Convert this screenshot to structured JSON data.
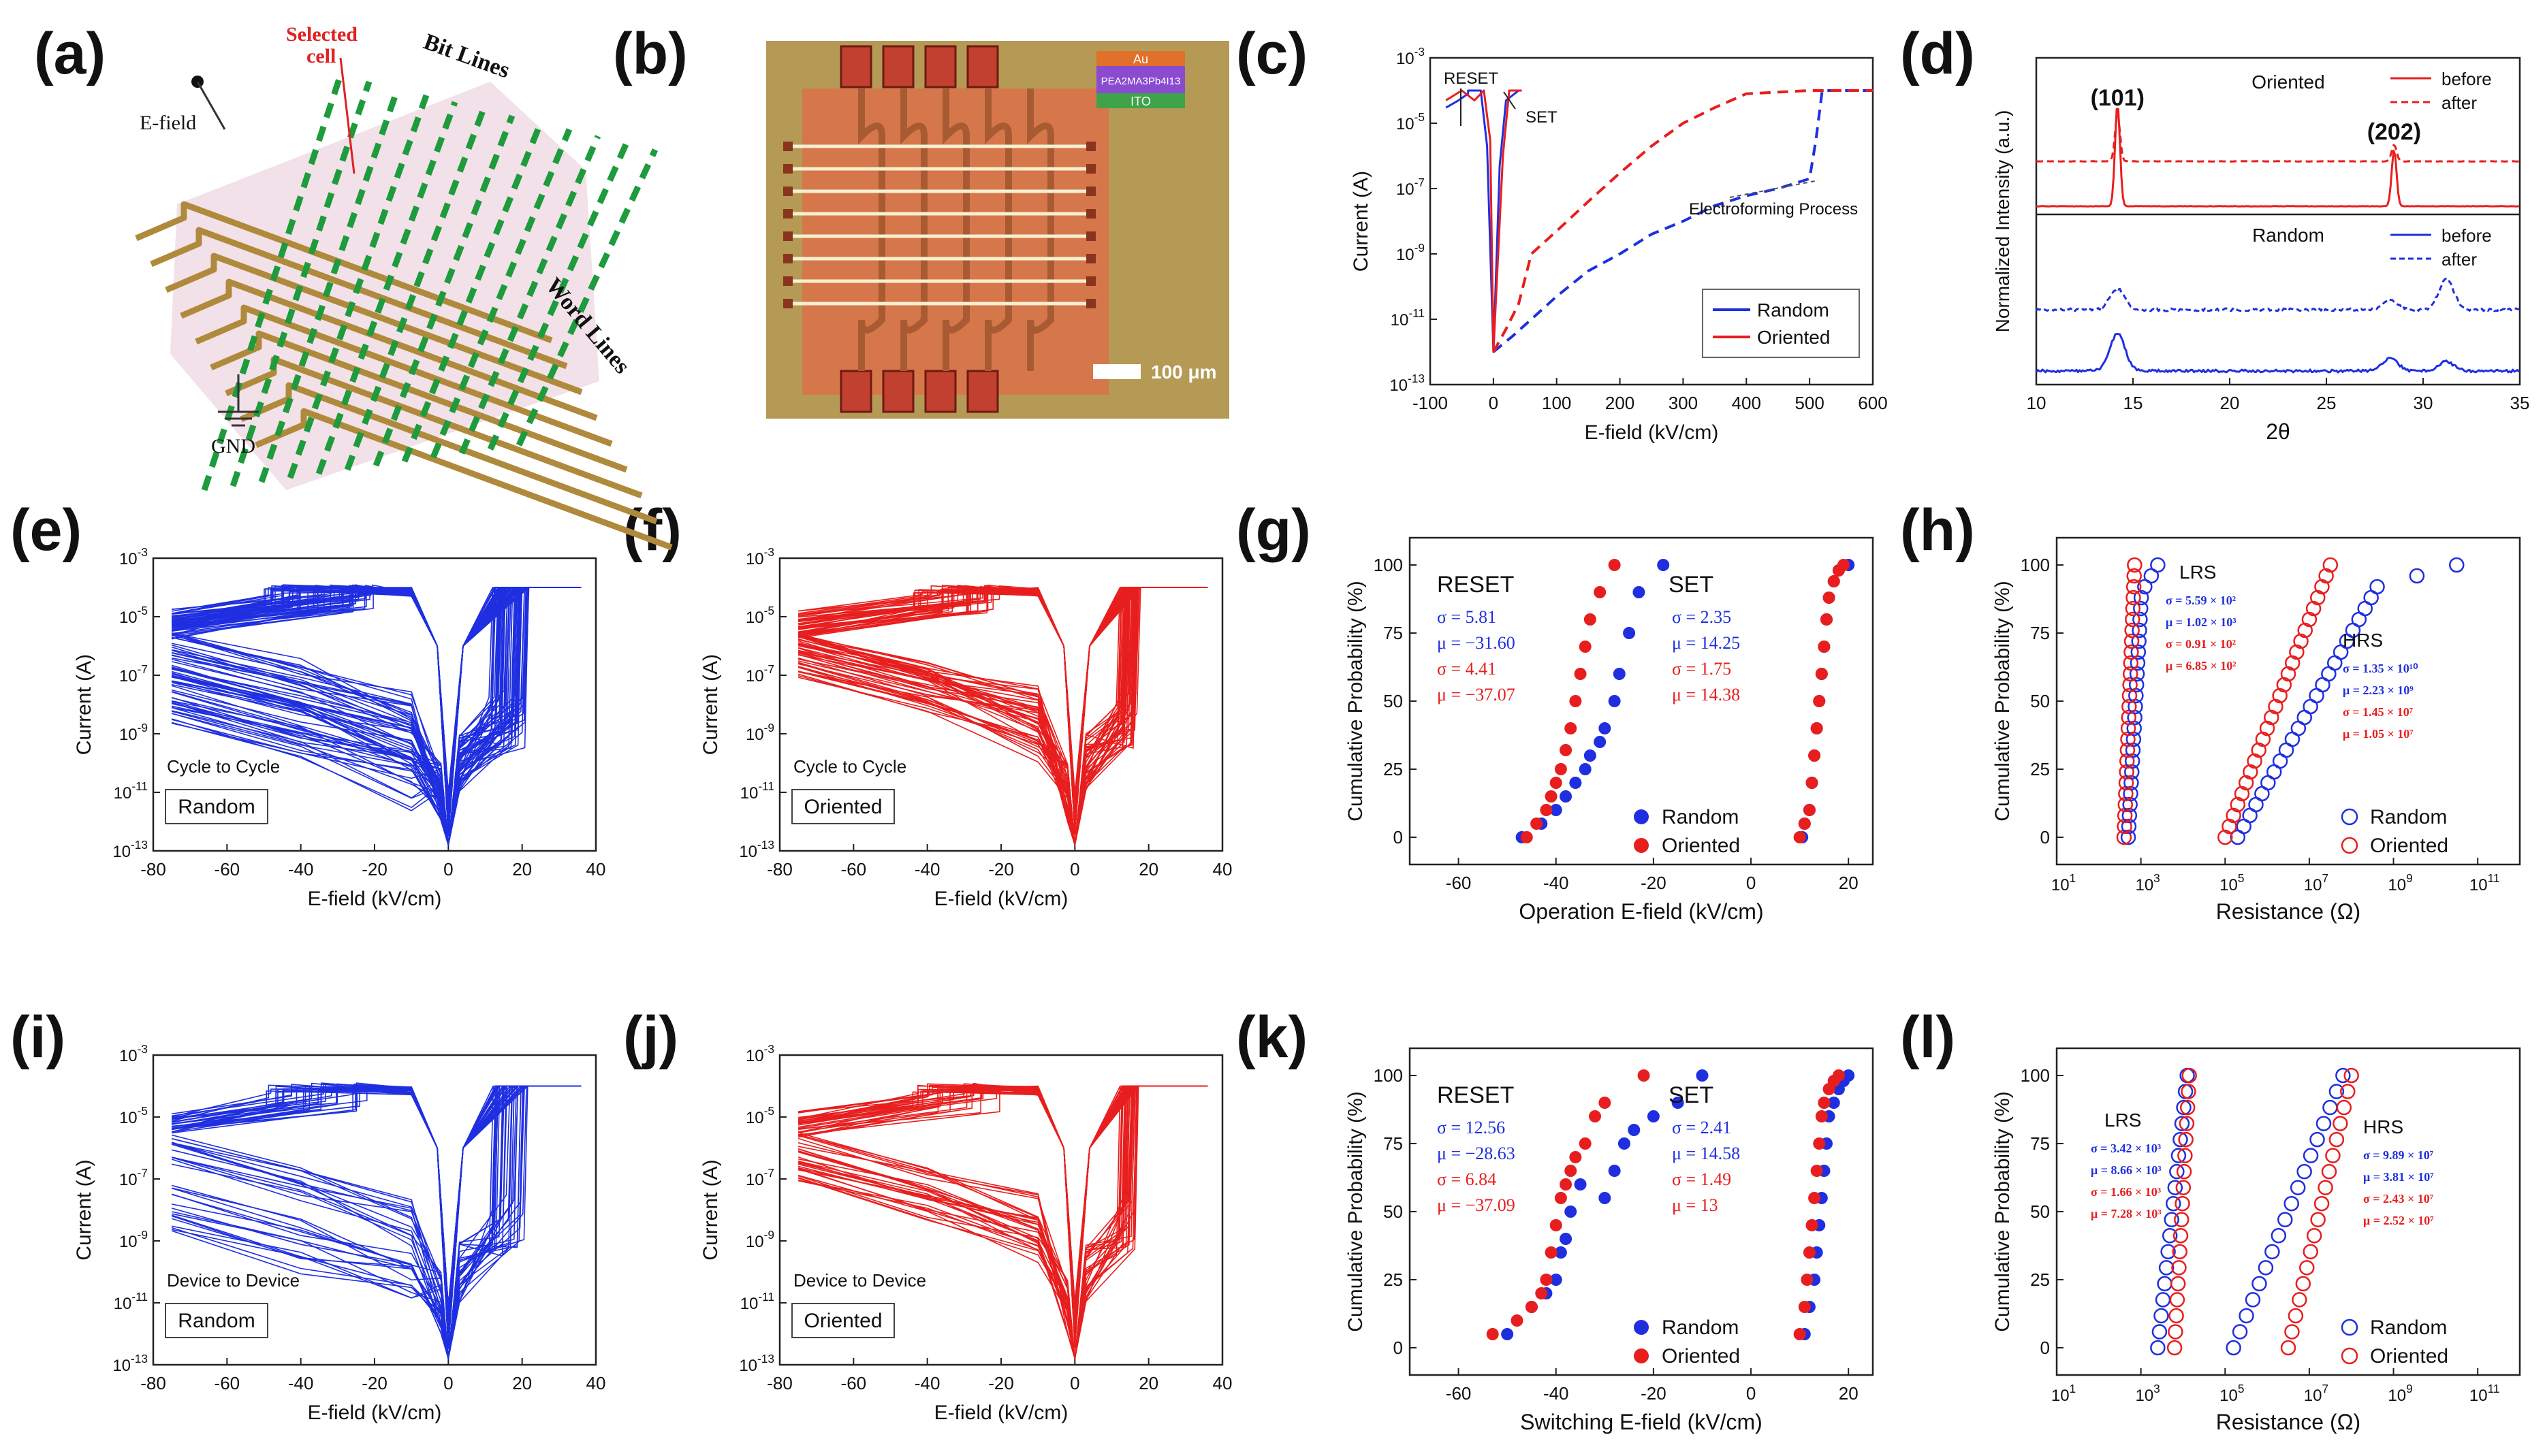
{
  "panel_labels": [
    "(a)",
    "(b)",
    "(c)",
    "(d)",
    "(e)",
    "(f)",
    "(g)",
    "(h)",
    "(i)",
    "(j)",
    "(k)",
    "(l)"
  ],
  "panel_a": {
    "efield": "E-field",
    "selected": "Selected\ncell",
    "bitlines": "Bit Lines",
    "wordlines": "Word Lines",
    "gnd": "GND",
    "colors": {
      "bit": "#1e9b3c",
      "word": "#b08a3c",
      "shade": "#e8c9d6",
      "pointer": "#e02020"
    }
  },
  "panel_b": {
    "legend": [
      "Au",
      "PEA2MA3Pb4I13",
      "ITO"
    ],
    "scalebar": "100 μm",
    "colors": {
      "bg": "#b59a55",
      "pad": "#d9734a",
      "line": "#f6f0cf",
      "au": "#e0702a",
      "pea": "#8a4bd0",
      "ito": "#3fa34a"
    }
  },
  "panel_c": {
    "xlabel": "E-field (kV/cm)",
    "ylabel": "Current (A)",
    "annotations": [
      "RESET",
      "SET",
      "Electroforming Process"
    ],
    "legend": [
      "Random",
      "Oriented"
    ]
  },
  "panel_d": {
    "xlabel": "2θ",
    "ylabel": "Normalized Intensity (a.u.)",
    "top_title": "Oriented",
    "bottom_title": "Random",
    "peaks": [
      "(101)",
      "(202)"
    ],
    "legend": [
      "before",
      "after"
    ]
  },
  "panel_e": {
    "xlabel": "E-field (kV/cm)",
    "ylabel": "Current (A)",
    "note": "Cycle to Cycle",
    "boxlabel": "Random"
  },
  "panel_f": {
    "xlabel": "E-field (kV/cm)",
    "ylabel": "Current (A)",
    "note": "Cycle to Cycle",
    "boxlabel": "Oriented"
  },
  "panel_g": {
    "xlabel": "Operation E-field (kV/cm)",
    "ylabel": "Cumulative Probability (%)",
    "reset": "RESET",
    "set": "SET",
    "reset_stats": [
      "σ = 5.81",
      "μ = −31.60",
      "σ = 4.41",
      "μ = −37.07"
    ],
    "set_stats": [
      "σ = 2.35",
      "μ = 14.25",
      "σ = 1.75",
      "μ = 14.38"
    ],
    "legend": [
      "Random",
      "Oriented"
    ]
  },
  "panel_h": {
    "xlabel": "Resistance (Ω)",
    "ylabel": "Cumulative Probability (%)",
    "lrs": "LRS",
    "hrs": "HRS",
    "lrs_stats": [
      "σ = 5.59 × 10²",
      "μ = 1.02 × 10³",
      "σ = 0.91 × 10²",
      "μ = 6.85 × 10²"
    ],
    "hrs_stats": [
      "σ = 1.35 × 10¹⁰",
      "μ = 2.23 × 10⁹",
      "σ = 1.45 × 10⁷",
      "μ = 1.05 × 10⁷"
    ],
    "legend": [
      "Random",
      "Oriented"
    ]
  },
  "panel_i": {
    "xlabel": "E-field (kV/cm)",
    "ylabel": "Current (A)",
    "note": "Device to Device",
    "boxlabel": "Random"
  },
  "panel_j": {
    "xlabel": "E-field (kV/cm)",
    "ylabel": "Current (A)",
    "note": "Device to Device",
    "boxlabel": "Oriented"
  },
  "panel_k": {
    "xlabel": "Switching E-field (kV/cm)",
    "ylabel": "Cumulative Probability (%)",
    "reset": "RESET",
    "set": "SET",
    "reset_stats": [
      "σ = 12.56",
      "μ = −28.63",
      "σ = 6.84",
      "μ = −37.09"
    ],
    "set_stats": [
      "σ = 2.41",
      "μ = 14.58",
      "σ = 1.49",
      "μ = 13"
    ],
    "legend": [
      "Random",
      "Oriented"
    ]
  },
  "panel_l": {
    "xlabel": "Resistance (Ω)",
    "ylabel": "Cumulative Probability (%)",
    "lrs": "LRS",
    "hrs": "HRS",
    "lrs_stats": [
      "σ = 3.42 × 10³",
      "μ = 8.66 × 10³",
      "σ = 1.66 × 10³",
      "μ = 7.28 × 10³"
    ],
    "hrs_stats": [
      "σ = 9.89 × 10⁷",
      "μ = 3.81 × 10⁷",
      "σ = 2.43 × 10⁷",
      "μ = 2.52 × 10⁷"
    ],
    "legend": [
      "Random",
      "Oriented"
    ]
  },
  "colors": {
    "random": "#1f2fe0",
    "oriented": "#e81e1e"
  },
  "chart_data": [
    {
      "panel": "c",
      "type": "line",
      "xlabel": "E-field (kV/cm)",
      "ylabel": "Current (A)",
      "xlim": [
        -100,
        600
      ],
      "y_scale": "log",
      "ylim": [
        1e-13,
        0.001
      ],
      "series": [
        {
          "name": "Random",
          "x": [
            0,
            30,
            60,
            100,
            150,
            200,
            250,
            300,
            350,
            400,
            450,
            500,
            510,
            520,
            600
          ],
          "y": [
            1e-12,
            3e-12,
            1e-11,
            5e-11,
            3e-10,
            1e-09,
            4e-09,
            1e-08,
            3e-08,
            6e-08,
            1e-07,
            2e-07,
            3e-06,
            0.0001,
            0.0001
          ]
        },
        {
          "name": "Oriented",
          "x": [
            0,
            20,
            40,
            60,
            100,
            150,
            200,
            250,
            300,
            350,
            400,
            500,
            600
          ],
          "y": [
            1e-12,
            5e-12,
            3e-11,
            1e-09,
            5e-09,
            4e-08,
            3e-07,
            2e-06,
            1e-05,
            3e-05,
            8e-05,
            0.0001,
            0.0001
          ]
        }
      ]
    },
    {
      "panel": "d",
      "type": "line",
      "xlabel": "2θ",
      "ylabel": "Normalized Intensity (a.u.)",
      "xlim": [
        10,
        35
      ],
      "series": [
        {
          "name": "before"
        },
        {
          "name": "after"
        }
      ],
      "peaks": [
        {
          "label": "(101)",
          "x": 14.2
        },
        {
          "label": "(202)",
          "x": 28.5
        }
      ]
    },
    {
      "panel": "e",
      "type": "line",
      "xlabel": "E-field (kV/cm)",
      "ylabel": "Current (A)",
      "xlim": [
        -80,
        40
      ],
      "y_scale": "log",
      "ylim": [
        1e-13,
        0.001
      ]
    },
    {
      "panel": "f",
      "type": "line",
      "xlabel": "E-field (kV/cm)",
      "ylabel": "Current (A)",
      "xlim": [
        -80,
        40
      ],
      "y_scale": "log",
      "ylim": [
        1e-13,
        0.001
      ]
    },
    {
      "panel": "g",
      "type": "scatter",
      "xlabel": "Operation E-field (kV/cm)",
      "ylabel": "Cumulative Probability (%)",
      "xlim": [
        -70,
        25
      ],
      "ylim": [
        0,
        100
      ],
      "series": [
        {
          "name": "Random",
          "x": [
            -47,
            -43,
            -40,
            -38,
            -36,
            -34,
            -33,
            -31,
            -30,
            -28,
            -27,
            -25,
            -23,
            -18,
            10.5,
            11,
            12,
            12.5,
            13,
            13.5,
            14,
            14.5,
            15,
            15.5,
            16,
            17,
            18,
            20
          ],
          "y": [
            0,
            5,
            10,
            15,
            20,
            25,
            30,
            35,
            40,
            50,
            60,
            75,
            90,
            100,
            0,
            5,
            10,
            20,
            30,
            40,
            50,
            60,
            70,
            80,
            88,
            94,
            98,
            100
          ]
        },
        {
          "name": "Oriented",
          "x": [
            -46,
            -44,
            -42,
            -41,
            -40,
            -39,
            -38,
            -37,
            -36,
            -35,
            -34,
            -33,
            -31,
            -28,
            10,
            11,
            12,
            12.5,
            13,
            13.5,
            14,
            14.5,
            15,
            15.5,
            16,
            17,
            18,
            19
          ],
          "y": [
            0,
            5,
            10,
            15,
            20,
            25,
            32,
            40,
            50,
            60,
            70,
            80,
            90,
            100,
            0,
            5,
            10,
            20,
            30,
            40,
            50,
            60,
            70,
            80,
            88,
            94,
            98,
            100
          ]
        }
      ]
    },
    {
      "panel": "h",
      "type": "scatter",
      "xlabel": "Resistance (Ω)",
      "ylabel": "Cumulative Probability (%)",
      "x_scale": "log",
      "xlim": [
        10,
        1000000000000.0
      ],
      "ylim": [
        0,
        100
      ],
      "series": [
        {
          "name": "Random"
        },
        {
          "name": "Oriented"
        }
      ]
    },
    {
      "panel": "i",
      "type": "line",
      "xlabel": "E-field (kV/cm)",
      "ylabel": "Current (A)",
      "xlim": [
        -80,
        40
      ],
      "y_scale": "log",
      "ylim": [
        1e-13,
        0.001
      ]
    },
    {
      "panel": "j",
      "type": "line",
      "xlabel": "E-field (kV/cm)",
      "ylabel": "Current (A)",
      "xlim": [
        -80,
        40
      ],
      "y_scale": "log",
      "ylim": [
        1e-13,
        0.001
      ]
    },
    {
      "panel": "k",
      "type": "scatter",
      "xlabel": "Switching E-field (kV/cm)",
      "ylabel": "Cumulative Probability (%)",
      "xlim": [
        -70,
        25
      ],
      "ylim": [
        0,
        100
      ],
      "series": [
        {
          "name": "Random",
          "x": [
            -50,
            -45,
            -42,
            -40,
            -39,
            -38,
            -37,
            -35,
            -30,
            -28,
            -26,
            -24,
            -20,
            -15,
            -10,
            11,
            12,
            13,
            13.5,
            14,
            14.5,
            15,
            15.5,
            16,
            17,
            18,
            19,
            20
          ],
          "y": [
            5,
            15,
            20,
            25,
            35,
            40,
            50,
            60,
            55,
            65,
            75,
            80,
            85,
            90,
            100,
            5,
            15,
            25,
            35,
            45,
            55,
            65,
            75,
            85,
            90,
            95,
            98,
            100
          ]
        },
        {
          "name": "Oriented",
          "x": [
            -53,
            -48,
            -45,
            -43,
            -42,
            -41,
            -40,
            -39,
            -38,
            -37,
            -36,
            -34,
            -32,
            -30,
            -22,
            10,
            11,
            11.5,
            12,
            12.5,
            13,
            13.5,
            14,
            14.5,
            15,
            16,
            17,
            18
          ],
          "y": [
            5,
            10,
            15,
            20,
            25,
            35,
            45,
            55,
            60,
            65,
            70,
            75,
            85,
            90,
            100,
            5,
            15,
            25,
            35,
            45,
            55,
            65,
            75,
            85,
            90,
            95,
            98,
            100
          ]
        }
      ]
    },
    {
      "panel": "l",
      "type": "scatter",
      "xlabel": "Resistance (Ω)",
      "ylabel": "Cumulative Probability (%)",
      "x_scale": "log",
      "xlim": [
        10,
        1000000000000.0
      ],
      "ylim": [
        0,
        100
      ],
      "series": [
        {
          "name": "Random"
        },
        {
          "name": "Oriented"
        }
      ]
    }
  ]
}
